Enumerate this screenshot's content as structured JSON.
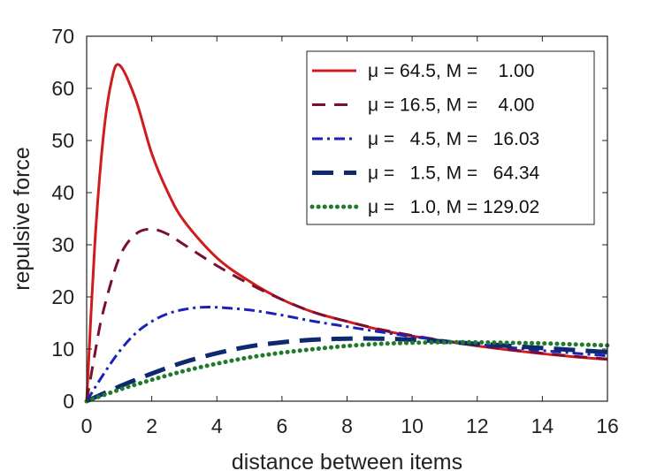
{
  "chart_data": {
    "type": "line",
    "xlabel": "distance between items",
    "ylabel": "repulsive force",
    "xlim": [
      0,
      16
    ],
    "ylim": [
      0,
      70
    ],
    "xticks": [
      "0",
      "2",
      "4",
      "6",
      "8",
      "10",
      "12",
      "14",
      "16"
    ],
    "yticks": [
      "0",
      "10",
      "20",
      "30",
      "40",
      "50",
      "60",
      "70"
    ],
    "grid": false,
    "legend_position": "top-right",
    "series": [
      {
        "name": "μ = 64.5, M =    1.00",
        "color": "#d01c1c",
        "style": "solid",
        "x": [
          0,
          0.25,
          0.5,
          0.75,
          1,
          1.5,
          2,
          2.5,
          3,
          4,
          5,
          6,
          7,
          8,
          9,
          10,
          11,
          12,
          13,
          14,
          15,
          16
        ],
        "y": [
          0,
          30,
          50,
          61,
          64.5,
          58,
          47.5,
          40,
          34.5,
          27.5,
          23,
          19.5,
          17,
          15.3,
          13.7,
          12.5,
          11.5,
          10.6,
          9.8,
          9.1,
          8.5,
          8.0
        ]
      },
      {
        "name": "μ = 16.5, M =    4.00",
        "color": "#7a1030",
        "style": "dashed",
        "x": [
          0,
          0.25,
          0.5,
          1,
          1.5,
          2,
          2.5,
          3,
          4,
          5,
          6,
          7,
          8,
          9,
          10,
          11,
          12,
          13,
          14,
          15,
          16
        ],
        "y": [
          0,
          9,
          17,
          27.5,
          32,
          33,
          32,
          30,
          26,
          22.5,
          19.5,
          17,
          15.3,
          13.8,
          12.6,
          11.6,
          10.7,
          9.9,
          9.2,
          8.6,
          8.1
        ]
      },
      {
        "name": "μ =   4.5, M =   16.03",
        "color": "#1a22b8",
        "style": "dashdot",
        "x": [
          0,
          0.5,
          1,
          1.5,
          2,
          2.5,
          3,
          3.5,
          4,
          5,
          6,
          7,
          8,
          9,
          10,
          11,
          12,
          13,
          14,
          15,
          16
        ],
        "y": [
          0,
          5,
          9.5,
          13,
          15.3,
          16.8,
          17.6,
          18,
          18,
          17.5,
          16.5,
          15.3,
          14.3,
          13.3,
          12.4,
          11.6,
          10.9,
          10.3,
          9.7,
          9.2,
          8.7
        ]
      },
      {
        "name": "μ =   1.5, M =   64.34",
        "color": "#0e2a6e",
        "style": "longdash",
        "x": [
          0,
          1,
          2,
          3,
          4,
          5,
          6,
          7,
          8,
          9,
          10,
          11,
          12,
          13,
          14,
          15,
          16
        ],
        "y": [
          0,
          2.8,
          5.3,
          7.5,
          9.2,
          10.5,
          11.3,
          11.8,
          12,
          12,
          11.8,
          11.4,
          11,
          10.6,
          10.2,
          9.8,
          9.4
        ]
      },
      {
        "name": "μ =   1.0, M = 129.02",
        "color": "#1f7a2c",
        "style": "dotted",
        "x": [
          0,
          1,
          2,
          3,
          4,
          5,
          6,
          7,
          8,
          9,
          10,
          11,
          12,
          13,
          14,
          15,
          16
        ],
        "y": [
          0,
          2.2,
          4.1,
          5.8,
          7.2,
          8.4,
          9.3,
          10,
          10.6,
          11,
          11.2,
          11.3,
          11.3,
          11.2,
          11.1,
          10.9,
          10.7
        ]
      }
    ]
  }
}
